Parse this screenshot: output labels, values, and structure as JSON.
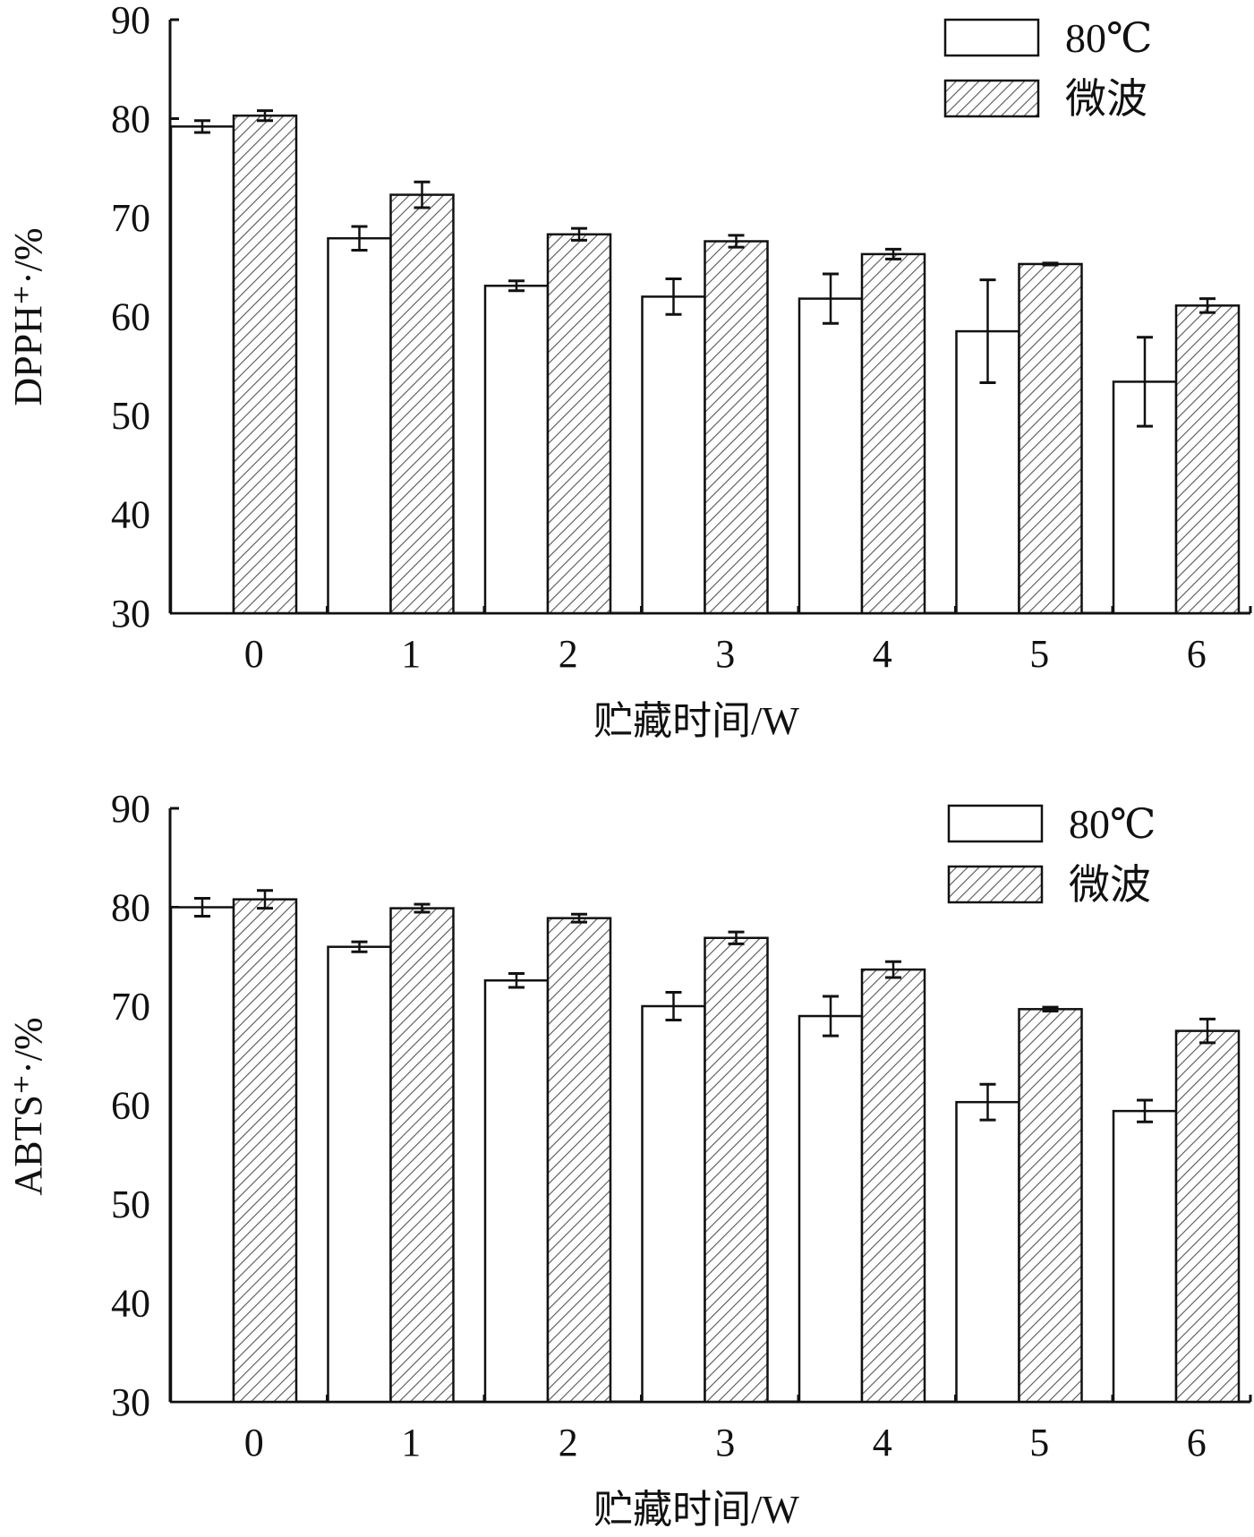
{
  "chart_data": [
    {
      "type": "bar",
      "categories": [
        "0",
        "1",
        "2",
        "3",
        "4",
        "5",
        "6"
      ],
      "ylabel": "DPPH⁺·/%",
      "xlabel": "贮藏时间/W",
      "ylim": [
        30,
        90
      ],
      "yticks": [
        "30",
        "40",
        "50",
        "60",
        "70",
        "80",
        "90"
      ],
      "legend_position": "top-right",
      "series": [
        {
          "name": "80℃",
          "pattern": "none",
          "values": [
            79.2,
            67.9,
            63.1,
            62.0,
            61.8,
            58.5,
            53.4
          ],
          "errors": [
            0.6,
            1.2,
            0.5,
            1.8,
            2.5,
            5.2,
            4.5
          ]
        },
        {
          "name": "微波",
          "pattern": "hatch",
          "values": [
            80.3,
            72.3,
            68.3,
            67.6,
            66.3,
            65.3,
            61.1
          ],
          "errors": [
            0.5,
            1.3,
            0.6,
            0.6,
            0.5,
            0.1,
            0.7
          ]
        }
      ]
    },
    {
      "type": "bar",
      "categories": [
        "0",
        "1",
        "2",
        "3",
        "4",
        "5",
        "6"
      ],
      "ylabel": "ABTS⁺·/%",
      "xlabel": "贮藏时间/W",
      "ylim": [
        30,
        90
      ],
      "yticks": [
        "30",
        "40",
        "50",
        "60",
        "70",
        "80",
        "90"
      ],
      "legend_position": "top-right",
      "series": [
        {
          "name": "80℃",
          "pattern": "none",
          "values": [
            80.0,
            76.0,
            72.6,
            70.0,
            69.0,
            60.3,
            59.4
          ],
          "errors": [
            0.9,
            0.5,
            0.7,
            1.4,
            2.0,
            1.8,
            1.1
          ]
        },
        {
          "name": "微波",
          "pattern": "hatch",
          "values": [
            80.8,
            79.9,
            78.9,
            76.9,
            73.7,
            69.7,
            67.5
          ],
          "errors": [
            0.9,
            0.4,
            0.4,
            0.6,
            0.8,
            0.2,
            1.2
          ]
        }
      ]
    }
  ],
  "colors": {
    "bar_fill": "#ffffff",
    "hatch_line": "#555555",
    "axis": "#111111"
  }
}
